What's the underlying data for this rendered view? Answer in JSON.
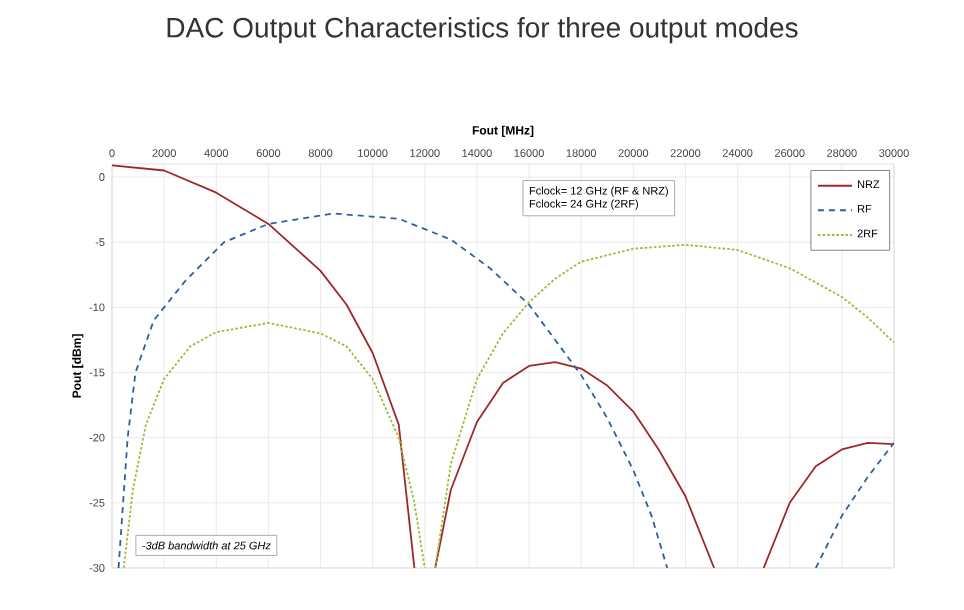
{
  "chart_data": {
    "type": "line",
    "title": "DAC Output Characteristics for three output modes",
    "xlabel": "Fout [MHz]",
    "ylabel": "Pout [dBm]",
    "xlim": [
      0,
      30000
    ],
    "ylim": [
      -30,
      1
    ],
    "xticks": [
      0,
      2000,
      4000,
      6000,
      8000,
      10000,
      12000,
      14000,
      16000,
      18000,
      20000,
      22000,
      24000,
      26000,
      28000,
      30000
    ],
    "yticks": [
      0,
      -5,
      -10,
      -15,
      -20,
      -25,
      -30
    ],
    "grid": true,
    "legend": "top right",
    "marker": "none",
    "annotations": [
      "Fclock= 12 GHz (RF & NRZ)",
      "Fclock= 24 GHz (2RF)",
      "-3dB bandwidth at 25 GHz"
    ],
    "series": [
      {
        "name": "NRZ",
        "color": "#a0282b",
        "line_style": "solid",
        "x": [
          0,
          2000,
          4000,
          6000,
          8000,
          9000,
          10000,
          11000,
          11600,
          null,
          12400,
          13000,
          14000,
          15000,
          16000,
          17000,
          18000,
          19000,
          20000,
          21000,
          22000,
          23100,
          null,
          25000,
          26000,
          27000,
          28000,
          29000,
          30000
        ],
        "values": [
          0.9,
          0.5,
          -1.2,
          -3.6,
          -7.2,
          -9.8,
          -13.5,
          -19,
          -30,
          null,
          -30,
          -24,
          -18.8,
          -15.8,
          -14.5,
          -14.2,
          -14.7,
          -16,
          -18,
          -21,
          -24.5,
          -30,
          null,
          -30,
          -25,
          -22.2,
          -20.9,
          -20.4,
          -20.5
        ]
      },
      {
        "name": "RF",
        "color": "#2e5fa0",
        "line_style": "dashed",
        "x": [
          250,
          600,
          900,
          1600,
          2800,
          4300,
          6000,
          8500,
          11000,
          13000,
          14500,
          16000,
          17000,
          18000,
          19000,
          20000,
          20700,
          21300,
          null,
          27000,
          28000,
          29000,
          30000
        ],
        "values": [
          -30,
          -20,
          -15,
          -11,
          -8,
          -5,
          -3.6,
          -2.8,
          -3.2,
          -4.8,
          -7,
          -9.8,
          -12.5,
          -15.2,
          -18.5,
          -22.5,
          -26,
          -30,
          null,
          -30,
          -26,
          -23,
          -20.4
        ]
      },
      {
        "name": "2RF",
        "color": "#9dbb3a",
        "line_style": "dotted",
        "x": [
          450,
          800,
          1300,
          2000,
          3000,
          4000,
          6000,
          8000,
          9000,
          10000,
          11000,
          11600,
          12000,
          null,
          12400,
          13000,
          14000,
          15000,
          16000,
          17000,
          18000,
          20000,
          22000,
          24000,
          26000,
          28000,
          29000,
          30000
        ],
        "values": [
          -30,
          -24,
          -19,
          -15.5,
          -13,
          -11.9,
          -11.2,
          -12,
          -13,
          -15.5,
          -20,
          -25,
          -30,
          null,
          -30,
          -22,
          -15.5,
          -12,
          -9.6,
          -7.8,
          -6.5,
          -5.5,
          -5.2,
          -5.6,
          -7,
          -9.2,
          -10.8,
          -12.7
        ]
      }
    ]
  }
}
